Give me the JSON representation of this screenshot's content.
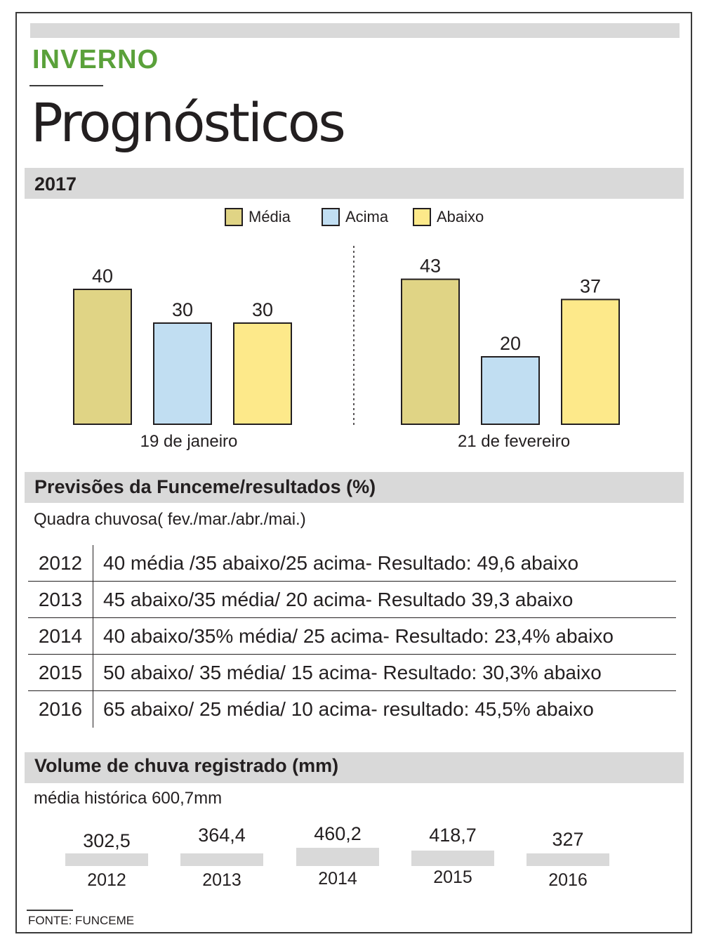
{
  "header": {
    "kicker": "INVERNO",
    "title": "Prognósticos"
  },
  "section1": {
    "title": "2017"
  },
  "colors": {
    "media": "#e0d485",
    "acima": "#c1def2",
    "abaixo": "#fde98a",
    "kicker": "#5aa13a",
    "bar_gray": "#d9d9d9"
  },
  "legend": [
    {
      "label": "Média",
      "color": "#e0d485"
    },
    {
      "label": "Acima",
      "color": "#c1def2"
    },
    {
      "label": "Abaixo",
      "color": "#fde98a"
    }
  ],
  "chart_data": {
    "type": "bar",
    "title": "2017",
    "groups": [
      "19 de janeiro",
      "21 de fevereiro"
    ],
    "series": [
      {
        "name": "Média",
        "values": [
          40,
          43
        ]
      },
      {
        "name": "Acima",
        "values": [
          30,
          20
        ]
      },
      {
        "name": "Abaixo",
        "values": [
          30,
          37
        ]
      }
    ],
    "ylim": [
      0,
      45
    ],
    "grid": false,
    "legend_position": "top-center"
  },
  "section2": {
    "title": "Previsões da Funceme/resultados (%)",
    "subtitle": "Quadra chuvosa( fev./mar./abr./mai.)",
    "rows": [
      {
        "year": "2012",
        "text": "40 média /35  abaixo/25 acima- Resultado: 49,6 abaixo"
      },
      {
        "year": "2013",
        "text": "45 abaixo/35 média/ 20 acima- Resultado 39,3 abaixo"
      },
      {
        "year": "2014",
        "text": "40 abaixo/35% média/ 25 acima- Resultado: 23,4% abaixo"
      },
      {
        "year": "2015",
        "text": "50 abaixo/ 35 média/ 15 acima- Resultado: 30,3% abaixo"
      },
      {
        "year": "2016",
        "text": "65 abaixo/ 25 média/ 10 acima- resultado: 45,5% abaixo"
      }
    ]
  },
  "section3": {
    "title": "Volume de chuva registrado (mm)",
    "subtitle": "média histórica 600,7mm",
    "items": [
      {
        "value": "302,5",
        "year": "2012"
      },
      {
        "value": "364,4",
        "year": "2013"
      },
      {
        "value": "460,2",
        "year": "2014"
      },
      {
        "value": "418,7",
        "year": "2015"
      },
      {
        "value": "327",
        "year": "2016"
      }
    ]
  },
  "source": "FONTE: FUNCEME"
}
